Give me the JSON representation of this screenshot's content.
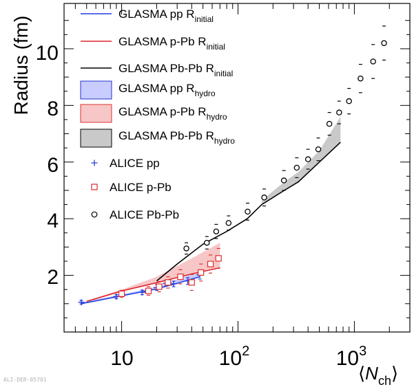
{
  "chart_data": {
    "type": "line",
    "ylabel": "Radius (fm)",
    "xlabel_parts": {
      "open": "⟨",
      "var": "N",
      "sub": "ch",
      "close": "⟩"
    },
    "xscale": "log",
    "xlim": [
      3.2,
      3000
    ],
    "ylim": [
      0,
      11.6
    ],
    "yticks_major": [
      "2",
      "4",
      "6",
      "8",
      "10"
    ],
    "xticks_major": [
      {
        "base": "10",
        "exp": ""
      },
      {
        "base": "10",
        "exp": "2"
      },
      {
        "base": "10",
        "exp": "3"
      }
    ],
    "grid": false,
    "legend_position": "top-left",
    "lines": [
      {
        "name_base": "GLASMA pp R",
        "name_sub": "initial",
        "color": "#1f3fdc",
        "x": [
          4.5,
          10,
          20,
          30,
          47
        ],
        "y": [
          1.0,
          1.28,
          1.52,
          1.72,
          1.95
        ]
      },
      {
        "name_base": "GLASMA p-Pb R",
        "name_sub": "initial",
        "color": "#e0252a",
        "x": [
          5,
          10,
          20,
          40,
          70
        ],
        "y": [
          1.08,
          1.45,
          1.74,
          2.05,
          2.27
        ]
      },
      {
        "name_base": "GLASMA Pb-Pb R",
        "name_sub": "initial",
        "color": "#000000",
        "x": [
          20,
          30,
          50,
          80,
          120,
          160,
          250,
          330,
          500,
          760
        ],
        "y": [
          1.8,
          2.4,
          3.1,
          3.55,
          4.0,
          4.5,
          5.0,
          5.3,
          6.0,
          6.7
        ]
      }
    ],
    "bands": [
      {
        "name_base": "GLASMA pp R",
        "name_sub": "hydro",
        "fill": "#c8ccff",
        "stroke": "#2233cc",
        "x": [
          4.5,
          10,
          20,
          30,
          47
        ],
        "lower": [
          1.0,
          1.28,
          1.52,
          1.72,
          1.95
        ],
        "upper": [
          1.05,
          1.33,
          1.6,
          1.85,
          2.15
        ]
      },
      {
        "name_base": "GLASMA p-Pb R",
        "name_sub": "hydro",
        "fill": "#f7c6c6",
        "stroke": "#dd3333",
        "x": [
          5,
          10,
          20,
          40,
          70
        ],
        "lower": [
          1.08,
          1.45,
          1.74,
          2.05,
          2.27
        ],
        "upper": [
          1.1,
          1.5,
          1.95,
          2.6,
          3.15
        ]
      },
      {
        "name_base": "GLASMA Pb-Pb R",
        "name_sub": "hydro",
        "fill": "#c9c9c9",
        "stroke": "#000000",
        "x": [
          160,
          250,
          330,
          500,
          760
        ],
        "lower": [
          4.5,
          5.0,
          5.3,
          6.0,
          6.7
        ],
        "upper": [
          4.65,
          5.3,
          5.65,
          6.4,
          7.6
        ]
      }
    ],
    "points": [
      {
        "name": "ALICE pp",
        "marker": "cross",
        "color": "#2a3fd6",
        "x": [
          4.5,
          9,
          15,
          20,
          24,
          28,
          37,
          47
        ],
        "y": [
          1.05,
          1.25,
          1.4,
          1.57,
          1.72,
          1.7,
          1.8,
          2.02
        ],
        "err": [
          0.06,
          0.07,
          0.08,
          0.1,
          0.1,
          0.1,
          0.12,
          0.15
        ]
      },
      {
        "name": "ALICE p-Pb",
        "marker": "square",
        "color": "#dd2a2a",
        "x": [
          10,
          17,
          21,
          25,
          32,
          40,
          48,
          58,
          68
        ],
        "y": [
          1.35,
          1.45,
          1.6,
          1.75,
          1.95,
          1.75,
          2.1,
          2.4,
          2.6
        ],
        "err": [
          0.12,
          0.15,
          0.18,
          0.2,
          0.25,
          0.28,
          0.3,
          0.32,
          0.35
        ]
      },
      {
        "name": "ALICE Pb-Pb",
        "marker": "circle",
        "color": "#000000",
        "x": [
          36,
          54,
          65,
          83,
          121,
          168,
          248,
          320,
          400,
          490,
          610,
          740,
          900,
          1130,
          1450,
          1800
        ],
        "y": [
          2.95,
          3.15,
          3.55,
          3.85,
          4.25,
          4.75,
          5.35,
          5.8,
          6.1,
          6.45,
          7.35,
          7.75,
          8.15,
          8.95,
          9.55,
          10.2
        ],
        "err": [
          0.2,
          0.22,
          0.25,
          0.25,
          0.3,
          0.3,
          0.35,
          0.35,
          0.35,
          0.4,
          0.4,
          0.4,
          0.45,
          0.5,
          0.6,
          0.6
        ]
      }
    ]
  },
  "watermark": "ALI-DER-85701"
}
